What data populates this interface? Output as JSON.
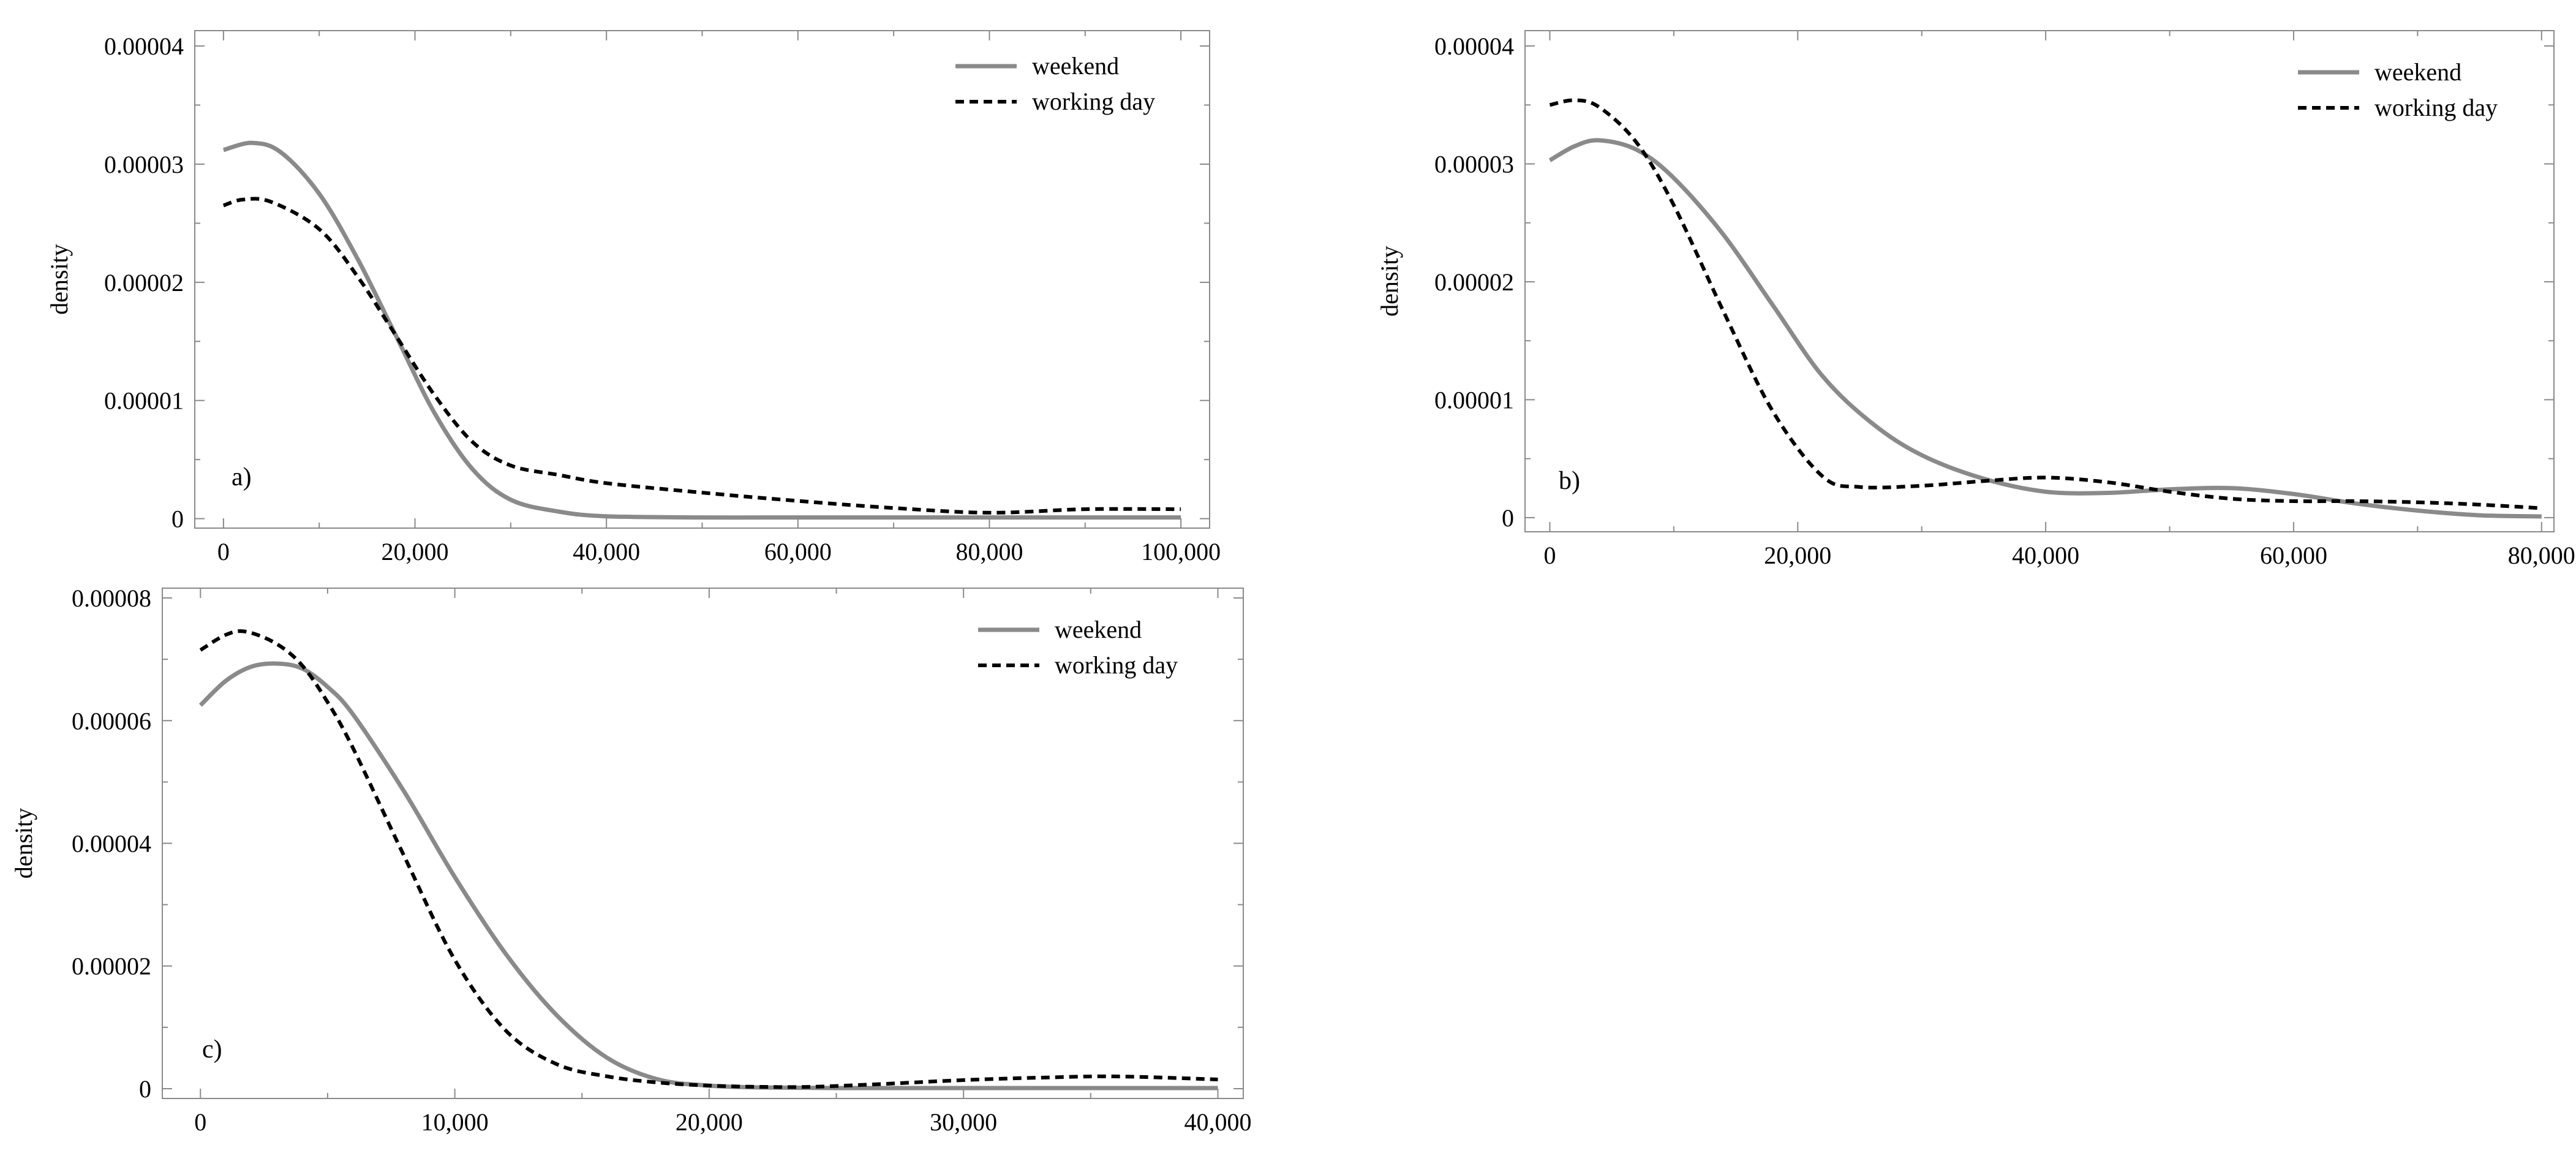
{
  "chart_data": [
    {
      "type": "line",
      "panel_label": "a)",
      "ylabel": "density",
      "xlabel": "",
      "xlim": [
        -3000,
        103000
      ],
      "ylim": [
        -8e-07,
        4.13e-05
      ],
      "xticks": [
        0,
        20000,
        40000,
        60000,
        80000,
        100000
      ],
      "xtick_labels": [
        "0",
        "20,000",
        "40,000",
        "60,000",
        "80,000",
        "100,000"
      ],
      "yticks": [
        0,
        1e-05,
        2e-05,
        3e-05,
        4e-05
      ],
      "ytick_labels": [
        "0",
        "0.00001",
        "0.00002",
        "0.00003",
        "0.00004"
      ],
      "legend_position": "top-right",
      "series": [
        {
          "name": "weekend",
          "style": "solid",
          "color": "#8a8a8a",
          "x": [
            0,
            3000,
            6000,
            10000,
            14000,
            18000,
            22000,
            26000,
            30000,
            35000,
            40000,
            50000,
            60000,
            70000,
            80000,
            90000,
            100000
          ],
          "y": [
            3.12e-05,
            3.18e-05,
            3.1e-05,
            2.75e-05,
            2.2e-05,
            1.55e-05,
            9e-06,
            4.2e-06,
            1.6e-06,
            6e-07,
            2e-07,
            1e-07,
            1e-07,
            1e-07,
            1e-07,
            1e-07,
            1e-07
          ]
        },
        {
          "name": "working day",
          "style": "dashed",
          "color": "#000000",
          "x": [
            0,
            2000,
            5000,
            10000,
            14000,
            18000,
            22000,
            26000,
            30000,
            35000,
            40000,
            50000,
            60000,
            70000,
            80000,
            90000,
            100000
          ],
          "y": [
            2.65e-05,
            2.7e-05,
            2.68e-05,
            2.45e-05,
            2.05e-05,
            1.55e-05,
            1.05e-05,
            6.5e-06,
            4.5e-06,
            3.7e-06,
            3e-06,
            2.2e-06,
            1.5e-06,
            9e-07,
            5e-07,
            8e-07,
            8e-07
          ]
        }
      ]
    },
    {
      "type": "line",
      "panel_label": "b)",
      "ylabel": "density",
      "xlabel": "",
      "xlim": [
        -2000,
        81000
      ],
      "ylim": [
        -1.2e-06,
        4.13e-05
      ],
      "xticks": [
        0,
        20000,
        40000,
        60000,
        80000
      ],
      "xtick_labels": [
        "0",
        "20,000",
        "40,000",
        "60,000",
        "80,000"
      ],
      "yticks": [
        0,
        1e-05,
        2e-05,
        3e-05,
        4e-05
      ],
      "ytick_labels": [
        "0",
        "0.00001",
        "0.00002",
        "0.00003",
        "0.00004"
      ],
      "legend_position": "top-right",
      "series": [
        {
          "name": "weekend",
          "style": "solid",
          "color": "#8a8a8a",
          "x": [
            0,
            2000,
            4000,
            7000,
            10000,
            14000,
            18000,
            22000,
            26000,
            30000,
            35000,
            40000,
            45000,
            50000,
            55000,
            60000,
            65000,
            70000,
            75000,
            80000
          ],
          "y": [
            3.03e-05,
            3.15e-05,
            3.2e-05,
            3.12e-05,
            2.88e-05,
            2.4e-05,
            1.8e-05,
            1.2e-05,
            8e-06,
            5.3e-06,
            3.3e-06,
            2.2e-06,
            2.1e-06,
            2.4e-06,
            2.5e-06,
            2e-06,
            1.2e-06,
            6e-07,
            2e-07,
            1e-07
          ]
        },
        {
          "name": "working day",
          "style": "dashed",
          "color": "#000000",
          "x": [
            0,
            2000,
            4000,
            7000,
            10000,
            14000,
            18000,
            22000,
            25000,
            30000,
            35000,
            40000,
            45000,
            50000,
            55000,
            60000,
            65000,
            70000,
            75000,
            80000
          ],
          "y": [
            3.5e-05,
            3.54e-05,
            3.48e-05,
            3.18e-05,
            2.65e-05,
            1.75e-05,
            9e-06,
            3.5e-06,
            2.6e-06,
            2.7e-06,
            3.1e-06,
            3.4e-06,
            3e-06,
            2.2e-06,
            1.6e-06,
            1.4e-06,
            1.4e-06,
            1.3e-06,
            1.1e-06,
            8e-07
          ]
        }
      ]
    },
    {
      "type": "line",
      "panel_label": "c)",
      "ylabel": "density",
      "xlabel": "",
      "xlim": [
        -1500,
        41000
      ],
      "ylim": [
        -1.6e-06,
        8.16e-05
      ],
      "xticks": [
        0,
        10000,
        20000,
        30000,
        40000
      ],
      "xtick_labels": [
        "0",
        "10,000",
        "20,000",
        "30,000",
        "40,000"
      ],
      "yticks": [
        0,
        2e-05,
        4e-05,
        6e-05,
        8e-05
      ],
      "ytick_labels": [
        "0",
        "0.00002",
        "0.00004",
        "0.00006",
        "0.00008"
      ],
      "legend_position": "top-right",
      "series": [
        {
          "name": "weekend",
          "style": "solid",
          "color": "#8a8a8a",
          "x": [
            0,
            1000,
            2000,
            3000,
            4000,
            5000,
            6000,
            8000,
            10000,
            12000,
            14000,
            16000,
            18000,
            20000,
            22000,
            25000,
            30000,
            35000,
            40000
          ],
          "y": [
            6.25e-05,
            6.65e-05,
            6.88e-05,
            6.93e-05,
            6.85e-05,
            6.55e-05,
            6.1e-05,
            4.85e-05,
            3.45e-05,
            2.2e-05,
            1.2e-05,
            5e-06,
            1.5e-06,
            5e-07,
            2e-07,
            1e-07,
            1e-07,
            1e-07,
            1e-07
          ]
        },
        {
          "name": "working day",
          "style": "dashed",
          "color": "#000000",
          "x": [
            0,
            1000,
            1800,
            3000,
            4000,
            5000,
            6000,
            8000,
            10000,
            12000,
            14000,
            16000,
            18000,
            20000,
            22000,
            24000,
            27000,
            30000,
            33000,
            36000,
            40000
          ],
          "y": [
            7.15e-05,
            7.4e-05,
            7.45e-05,
            7.25e-05,
            6.9e-05,
            6.3e-05,
            5.55e-05,
            3.8e-05,
            2.1e-05,
            9.5e-06,
            4e-06,
            2e-06,
            1e-06,
            5e-07,
            3e-07,
            3e-07,
            8e-07,
            1.4e-06,
            1.8e-06,
            2e-06,
            1.5e-06
          ]
        }
      ]
    }
  ]
}
